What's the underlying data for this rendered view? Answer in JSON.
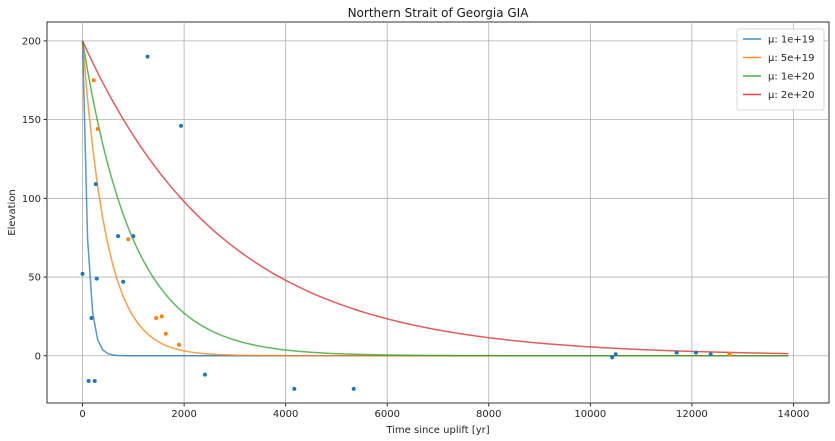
{
  "chart_data": {
    "type": "line",
    "title": "Northern Strait of Georgia GIA",
    "xlabel": "Time since uplift [yr]",
    "ylabel": "Elevation",
    "xlim": [
      -700,
      14700
    ],
    "ylim": [
      -30,
      212
    ],
    "xticks": [
      0,
      2000,
      4000,
      6000,
      8000,
      10000,
      12000,
      14000
    ],
    "yticks": [
      0,
      50,
      100,
      150,
      200
    ],
    "grid": true,
    "legend_position": "top-right",
    "legend_prefix": "μ: ",
    "series": [
      {
        "name": "1e+19",
        "color": "#1f77b4",
        "tau": 100,
        "points": [
          [
            0,
            52
          ],
          [
            120,
            -16
          ],
          [
            175,
            24
          ],
          [
            240,
            -16
          ],
          [
            260,
            109
          ],
          [
            280,
            49
          ],
          [
            700,
            76
          ],
          [
            800,
            47
          ],
          [
            1000,
            76
          ],
          [
            1280,
            190
          ],
          [
            1940,
            146
          ],
          [
            2410,
            -12
          ],
          [
            4170,
            -21
          ],
          [
            5340,
            -21
          ],
          [
            10430,
            -1
          ],
          [
            10500,
            1
          ],
          [
            11700,
            2
          ],
          [
            12080,
            2
          ],
          [
            12370,
            1
          ]
        ]
      },
      {
        "name": "5e+19",
        "color": "#ff7f0e",
        "tau": 480,
        "points": [
          [
            220,
            175
          ],
          [
            300,
            144
          ],
          [
            900,
            74
          ],
          [
            1450,
            24
          ],
          [
            1560,
            25
          ],
          [
            1640,
            14
          ],
          [
            1900,
            7
          ],
          [
            12740,
            1
          ]
        ]
      },
      {
        "name": "1e+20",
        "color": "#2ca02c",
        "tau": 1000,
        "points": []
      },
      {
        "name": "2e+20",
        "color": "#d62728",
        "tau": 2800,
        "points": []
      }
    ],
    "curve_start": 200,
    "curve_xmax": 13900
  }
}
